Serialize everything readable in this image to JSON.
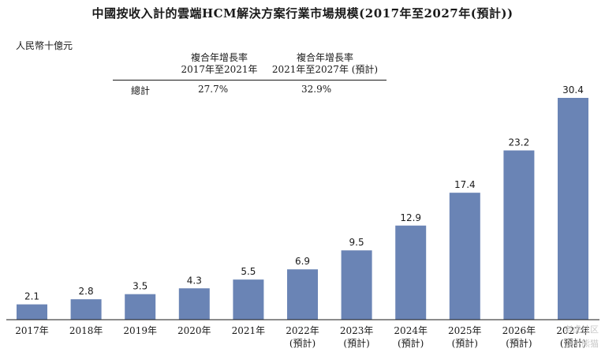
{
  "chart_data": {
    "type": "bar",
    "title": "中國按收入計的雲端HCM解決方案行業市場規模(2017年至2027年(預計))",
    "unit_label": "人民幣十億元",
    "categories": [
      "2017年",
      "2018年",
      "2019年",
      "2020年",
      "2021年",
      "2022年",
      "2023年",
      "2024年",
      "2025年",
      "2026年",
      "2027年"
    ],
    "category_subtitles": [
      "",
      "",
      "",
      "",
      "",
      "(預計)",
      "(預計)",
      "(預計)",
      "(預計)",
      "(預計)",
      "(預計)"
    ],
    "values": [
      2.1,
      2.8,
      3.5,
      4.3,
      5.5,
      6.9,
      9.5,
      12.9,
      17.4,
      23.2,
      30.4
    ],
    "value_labels": [
      "2.1",
      "2.8",
      "3.5",
      "4.3",
      "5.5",
      "6.9",
      "9.5",
      "12.9",
      "17.4",
      "23.2",
      "30.4"
    ],
    "ylim": [
      0,
      30.4
    ],
    "bar_color": "#6a84b5",
    "grid": false
  },
  "cagr_table": {
    "header_1": [
      "複合年增長率",
      "2017年至2021年"
    ],
    "header_2": [
      "複合年增長率",
      "2021年至2027年 (預計)"
    ],
    "row_label": "總計",
    "value_1": "27.7%",
    "value_2": "32.9%"
  },
  "watermark": {
    "line1": "老虎社区",
    "line2": "@小熊猫"
  }
}
